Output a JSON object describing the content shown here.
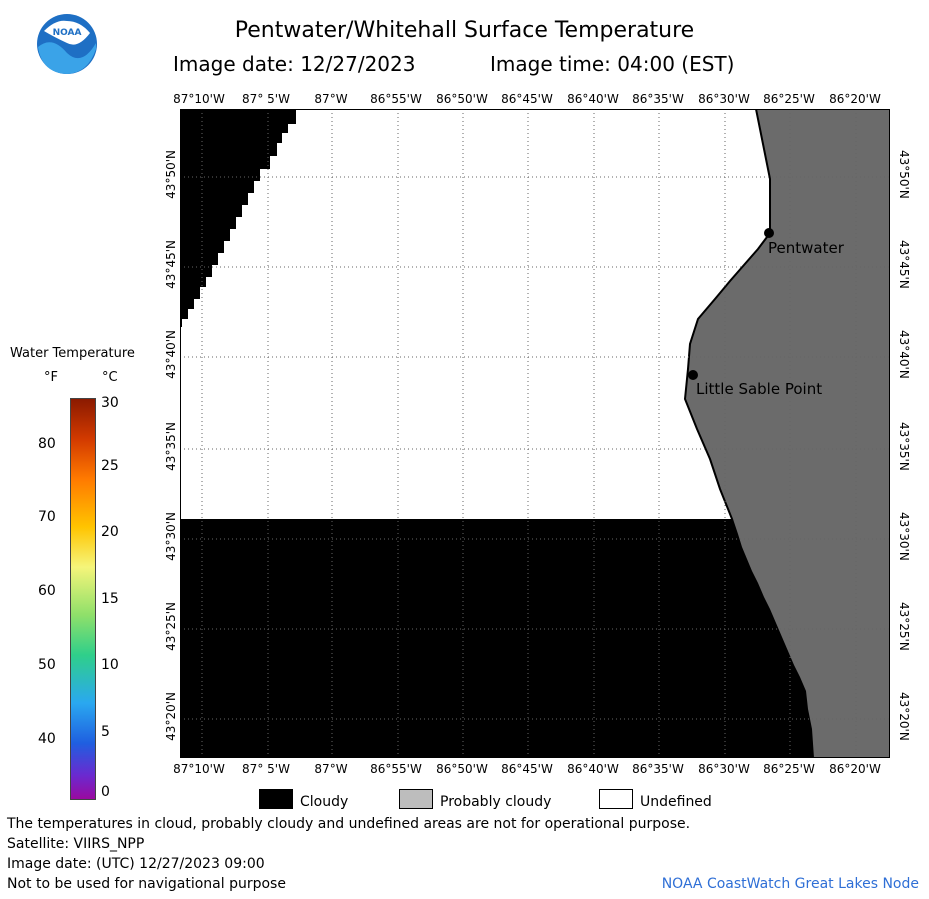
{
  "title": "Pentwater/Whitehall Surface Temperature",
  "image_date": "Image date: 12/27/2023",
  "image_time": "Image time: 04:00 (EST)",
  "logo_text": "NOAA",
  "lon_labels": [
    "87°10'W",
    "87° 5'W",
    "87°W",
    "86°55'W",
    "86°50'W",
    "86°45'W",
    "86°40'W",
    "86°35'W",
    "86°30'W",
    "86°25'W",
    "86°20'W"
  ],
  "lat_labels": [
    "43°50'N",
    "43°45'N",
    "43°40'N",
    "43°35'N",
    "43°30'N",
    "43°25'N",
    "43°20'N"
  ],
  "places": [
    {
      "name": "Pentwater"
    },
    {
      "name": "Little Sable Point"
    }
  ],
  "legend": {
    "title": "Water Temperature",
    "unit_f": "°F",
    "unit_c": "°C",
    "f_ticks": [
      "80",
      "70",
      "60",
      "50",
      "40"
    ],
    "c_ticks": [
      "30",
      "25",
      "20",
      "15",
      "10",
      "5",
      "0"
    ]
  },
  "key": {
    "cloudy": "Cloudy",
    "probably_cloudy": "Probably cloudy",
    "undefined": "Undefined"
  },
  "colors": {
    "cloud": "#000000",
    "land": "#6b6b6b",
    "undefined": "#ffffff",
    "credit": "#2f6fd6"
  },
  "footer": {
    "note": "The temperatures in cloud, probably cloudy and undefined areas are not for operational purpose.",
    "satellite": "Satellite: VIIRS_NPP",
    "utc": "Image date: (UTC) 12/27/2023  09:00",
    "nav": "Not to be used for navigational purpose",
    "credit": "NOAA CoastWatch Great Lakes Node"
  }
}
